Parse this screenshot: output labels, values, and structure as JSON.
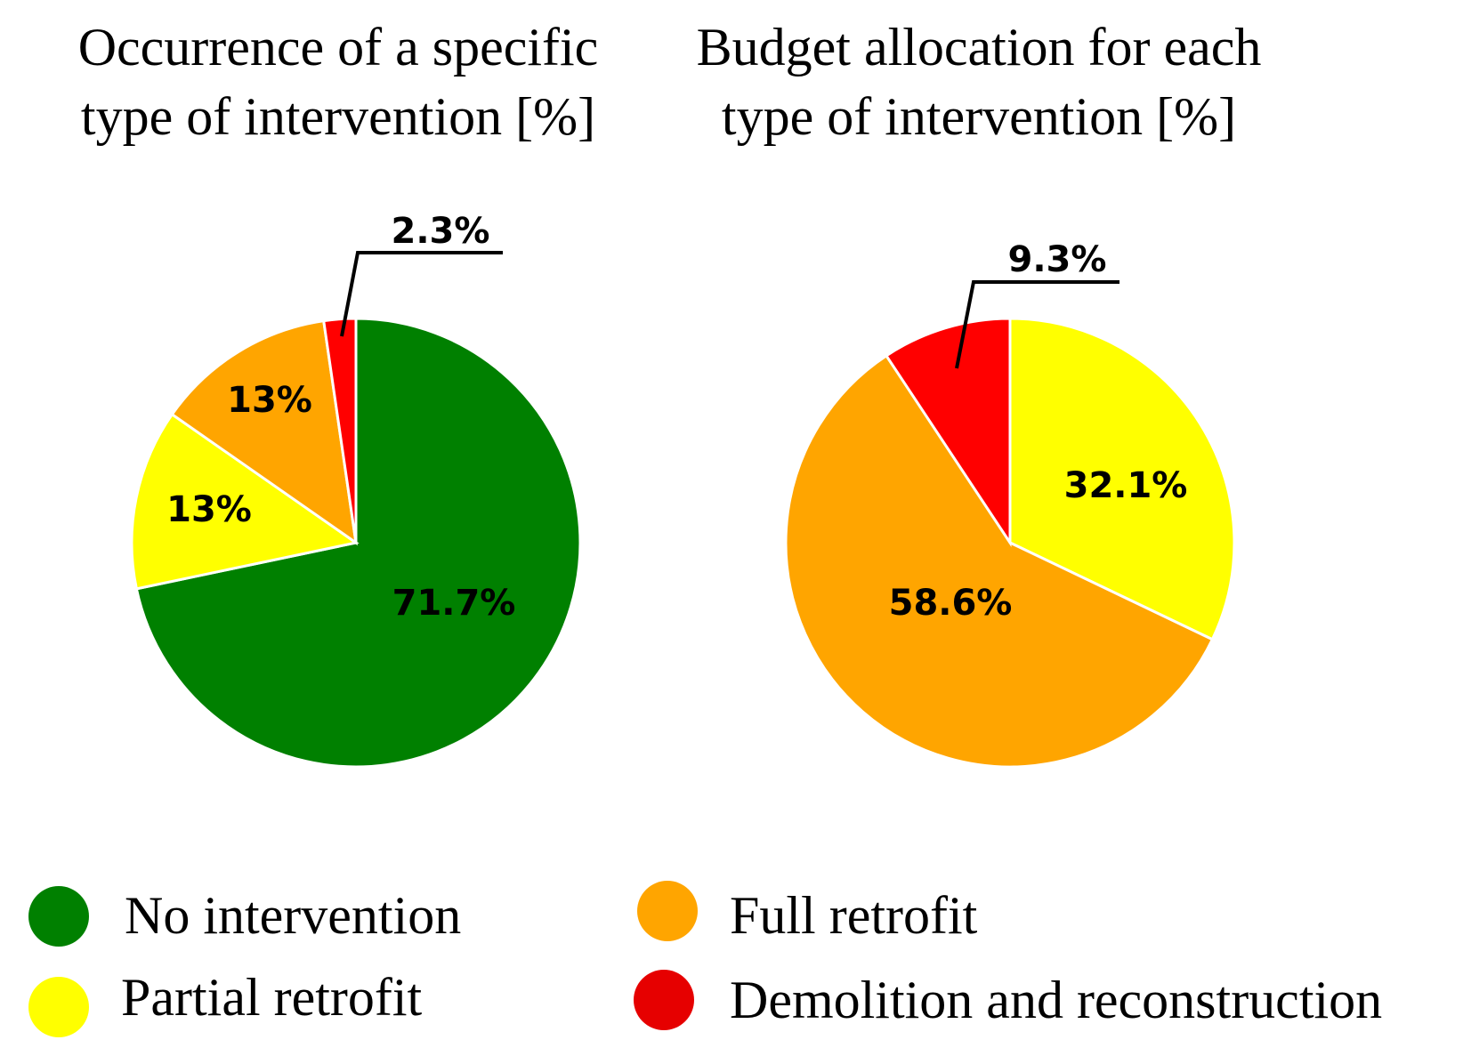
{
  "chart_data": [
    {
      "type": "pie",
      "title": [
        "Occurrence of a specific",
        "type of intervention [%]"
      ],
      "slices": [
        {
          "label": "No intervention",
          "value": 71.7,
          "display": "71.7%",
          "color": "#008000"
        },
        {
          "label": "Partial retrofit",
          "value": 13,
          "display": "13%",
          "color": "#ffff00"
        },
        {
          "label": "Full retrofit",
          "value": 13,
          "display": "13%",
          "color": "#ffa500"
        },
        {
          "label": "Demolition and reconstruction",
          "value": 2.3,
          "display": "2.3%",
          "color": "#ff0000"
        }
      ]
    },
    {
      "type": "pie",
      "title": [
        "Budget allocation for each",
        "type of intervention [%]"
      ],
      "slices": [
        {
          "label": "Partial retrofit",
          "value": 32.1,
          "display": "32.1%",
          "color": "#ffff00"
        },
        {
          "label": "Full retrofit",
          "value": 58.6,
          "display": "58.6%",
          "color": "#ffa500"
        },
        {
          "label": "Demolition and reconstruction",
          "value": 9.3,
          "display": "9.3%",
          "color": "#ff0000"
        }
      ]
    }
  ],
  "legend": [
    {
      "label": "No intervention",
      "color": "#008000"
    },
    {
      "label": "Full retrofit",
      "color": "#ffa500"
    },
    {
      "label": "Partial retrofit",
      "color": "#ffff00"
    },
    {
      "label": "Demolition and reconstruction",
      "color": "#e60000"
    }
  ]
}
